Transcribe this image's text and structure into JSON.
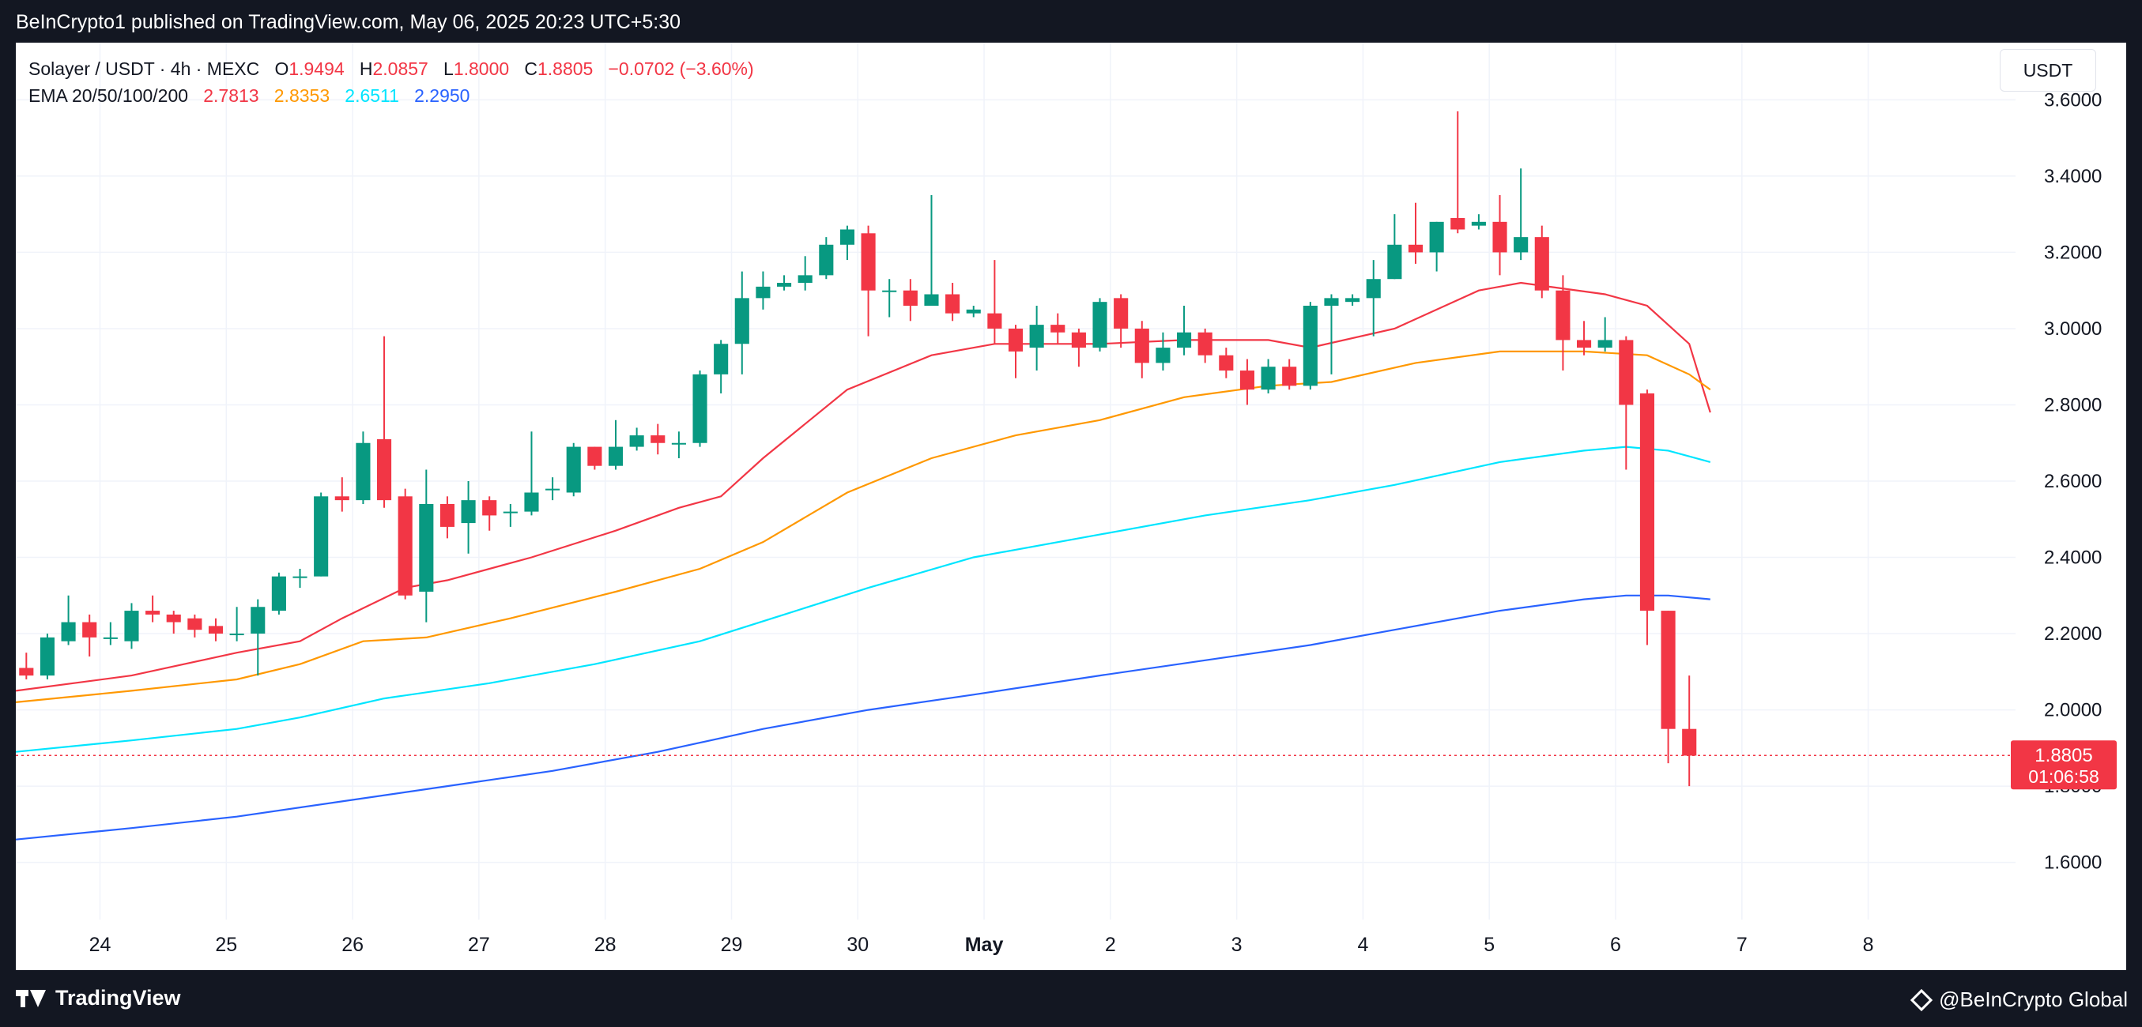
{
  "header": {
    "published_text": "BeInCrypto1 published on TradingView.com, May 06, 2025 20:23 UTC+5:30"
  },
  "footer": {
    "tv_logo_label": "TradingView",
    "brand_label": "@BeInCrypto Global"
  },
  "legend": {
    "symbol": "Solayer / USDT · 4h · MEXC",
    "o_label": "O",
    "o_value": "1.9494",
    "h_label": "H",
    "h_value": "2.0857",
    "l_label": "L",
    "l_value": "1.8000",
    "c_label": "C",
    "c_value": "1.8805",
    "change": "−0.0702 (−3.60%)",
    "ema_label": "EMA 20/50/100/200",
    "ema20": "2.7813",
    "ema50": "2.8353",
    "ema100": "2.6511",
    "ema200": "2.2950"
  },
  "currency_label": "USDT",
  "colors": {
    "up": "#089981",
    "down": "#f23645",
    "ema20": "#f23645",
    "ema50": "#ff9800",
    "ema100": "#00e5ff",
    "ema200": "#2962ff",
    "price_tag": "#f23645"
  },
  "chart_data": {
    "type": "candlestick",
    "title": "Solayer / USDT · 4h · MEXC",
    "ylim": [
      1.45,
      3.75
    ],
    "y_ticks": [
      "1.6000",
      "1.8000",
      "2.0000",
      "2.2000",
      "2.4000",
      "2.6000",
      "2.8000",
      "3.0000",
      "3.2000",
      "3.4000",
      "3.6000"
    ],
    "x_ticks": [
      {
        "label": "24",
        "t": 3.5
      },
      {
        "label": "25",
        "t": 9.5
      },
      {
        "label": "26",
        "t": 15.5
      },
      {
        "label": "27",
        "t": 21.5
      },
      {
        "label": "28",
        "t": 27.5
      },
      {
        "label": "29",
        "t": 33.5
      },
      {
        "label": "30",
        "t": 39.5
      },
      {
        "label": "May",
        "t": 45.5
      },
      {
        "label": "2",
        "t": 51.5
      },
      {
        "label": "3",
        "t": 57.5
      },
      {
        "label": "4",
        "t": 63.5
      },
      {
        "label": "5",
        "t": 69.5
      },
      {
        "label": "6",
        "t": 75.5
      },
      {
        "label": "7",
        "t": 81.5
      },
      {
        "label": "8",
        "t": 87.5
      }
    ],
    "t_range": [
      -0.5,
      94.5
    ],
    "last_price": {
      "value": 1.8805,
      "label": "1.8805",
      "countdown": "01:06:58"
    },
    "candles": [
      [
        2.11,
        2.09,
        2.15,
        2.08
      ],
      [
        2.09,
        2.19,
        2.2,
        2.08
      ],
      [
        2.18,
        2.23,
        2.3,
        2.17
      ],
      [
        2.23,
        2.19,
        2.25,
        2.14
      ],
      [
        2.19,
        2.19,
        2.23,
        2.17
      ],
      [
        2.18,
        2.26,
        2.28,
        2.16
      ],
      [
        2.26,
        2.25,
        2.3,
        2.23
      ],
      [
        2.25,
        2.23,
        2.26,
        2.2
      ],
      [
        2.24,
        2.21,
        2.25,
        2.19
      ],
      [
        2.22,
        2.2,
        2.24,
        2.18
      ],
      [
        2.2,
        2.2,
        2.27,
        2.18
      ],
      [
        2.2,
        2.27,
        2.29,
        2.09
      ],
      [
        2.26,
        2.35,
        2.36,
        2.25
      ],
      [
        2.35,
        2.35,
        2.37,
        2.32
      ],
      [
        2.35,
        2.56,
        2.57,
        2.35
      ],
      [
        2.56,
        2.55,
        2.61,
        2.52
      ],
      [
        2.55,
        2.7,
        2.73,
        2.54
      ],
      [
        2.71,
        2.55,
        2.98,
        2.53
      ],
      [
        2.56,
        2.3,
        2.58,
        2.29
      ],
      [
        2.31,
        2.54,
        2.63,
        2.23
      ],
      [
        2.54,
        2.48,
        2.56,
        2.45
      ],
      [
        2.49,
        2.55,
        2.6,
        2.41
      ],
      [
        2.55,
        2.51,
        2.56,
        2.47
      ],
      [
        2.52,
        2.52,
        2.54,
        2.48
      ],
      [
        2.52,
        2.57,
        2.73,
        2.51
      ],
      [
        2.58,
        2.58,
        2.61,
        2.55
      ],
      [
        2.57,
        2.69,
        2.7,
        2.56
      ],
      [
        2.69,
        2.64,
        2.69,
        2.63
      ],
      [
        2.64,
        2.69,
        2.76,
        2.63
      ],
      [
        2.69,
        2.72,
        2.74,
        2.68
      ],
      [
        2.72,
        2.7,
        2.75,
        2.67
      ],
      [
        2.7,
        2.7,
        2.73,
        2.66
      ],
      [
        2.7,
        2.88,
        2.89,
        2.69
      ],
      [
        2.88,
        2.96,
        2.97,
        2.83
      ],
      [
        2.96,
        3.08,
        3.15,
        2.88
      ],
      [
        3.08,
        3.11,
        3.15,
        3.05
      ],
      [
        3.11,
        3.12,
        3.14,
        3.1
      ],
      [
        3.12,
        3.14,
        3.19,
        3.1
      ],
      [
        3.14,
        3.22,
        3.24,
        3.13
      ],
      [
        3.22,
        3.26,
        3.27,
        3.18
      ],
      [
        3.25,
        3.1,
        3.27,
        2.98
      ],
      [
        3.1,
        3.1,
        3.13,
        3.03
      ],
      [
        3.1,
        3.06,
        3.13,
        3.02
      ],
      [
        3.06,
        3.09,
        3.35,
        3.06
      ],
      [
        3.09,
        3.04,
        3.12,
        3.02
      ],
      [
        3.04,
        3.05,
        3.06,
        3.03
      ],
      [
        3.04,
        3.0,
        3.18,
        2.96
      ],
      [
        3.0,
        2.94,
        3.01,
        2.87
      ],
      [
        2.95,
        3.01,
        3.06,
        2.89
      ],
      [
        3.01,
        2.99,
        3.04,
        2.96
      ],
      [
        2.99,
        2.95,
        3.0,
        2.9
      ],
      [
        2.95,
        3.07,
        3.08,
        2.94
      ],
      [
        3.08,
        3.0,
        3.09,
        2.95
      ],
      [
        3.0,
        2.91,
        3.02,
        2.87
      ],
      [
        2.91,
        2.95,
        2.99,
        2.89
      ],
      [
        2.95,
        2.99,
        3.06,
        2.93
      ],
      [
        2.99,
        2.93,
        3.0,
        2.91
      ],
      [
        2.93,
        2.89,
        2.95,
        2.87
      ],
      [
        2.89,
        2.84,
        2.92,
        2.8
      ],
      [
        2.84,
        2.9,
        2.92,
        2.83
      ],
      [
        2.9,
        2.85,
        2.92,
        2.84
      ],
      [
        2.85,
        3.06,
        3.07,
        2.84
      ],
      [
        3.06,
        3.08,
        3.09,
        2.88
      ],
      [
        3.07,
        3.08,
        3.09,
        3.06
      ],
      [
        3.08,
        3.13,
        3.18,
        2.98
      ],
      [
        3.13,
        3.22,
        3.3,
        3.13
      ],
      [
        3.22,
        3.2,
        3.33,
        3.17
      ],
      [
        3.2,
        3.28,
        3.28,
        3.15
      ],
      [
        3.29,
        3.26,
        3.57,
        3.25
      ],
      [
        3.27,
        3.28,
        3.3,
        3.26
      ],
      [
        3.28,
        3.2,
        3.35,
        3.14
      ],
      [
        3.2,
        3.24,
        3.42,
        3.18
      ],
      [
        3.24,
        3.1,
        3.27,
        3.08
      ],
      [
        3.1,
        2.97,
        3.14,
        2.89
      ],
      [
        2.97,
        2.95,
        3.02,
        2.93
      ],
      [
        2.95,
        2.97,
        3.03,
        2.94
      ],
      [
        2.97,
        2.8,
        2.98,
        2.63
      ],
      [
        2.83,
        2.26,
        2.84,
        2.17
      ],
      [
        2.26,
        1.95,
        2.26,
        1.86
      ],
      [
        1.95,
        1.88,
        2.09,
        1.8
      ]
    ],
    "series": [
      {
        "name": "EMA 20",
        "color": "#f23645",
        "points": [
          [
            -0.5,
            2.05
          ],
          [
            5,
            2.09
          ],
          [
            10,
            2.15
          ],
          [
            13,
            2.18
          ],
          [
            15,
            2.24
          ],
          [
            18,
            2.32
          ],
          [
            20,
            2.34
          ],
          [
            24,
            2.4
          ],
          [
            28,
            2.47
          ],
          [
            31,
            2.53
          ],
          [
            33,
            2.56
          ],
          [
            35,
            2.66
          ],
          [
            39,
            2.84
          ],
          [
            43,
            2.93
          ],
          [
            46,
            2.96
          ],
          [
            51,
            2.96
          ],
          [
            55,
            2.97
          ],
          [
            59,
            2.97
          ],
          [
            61,
            2.95
          ],
          [
            65,
            3.0
          ],
          [
            69,
            3.1
          ],
          [
            71,
            3.12
          ],
          [
            75,
            3.09
          ],
          [
            77,
            3.06
          ],
          [
            79,
            2.96
          ],
          [
            80,
            2.78
          ]
        ]
      },
      {
        "name": "EMA 50",
        "color": "#ff9800",
        "points": [
          [
            -0.5,
            2.02
          ],
          [
            5,
            2.05
          ],
          [
            10,
            2.08
          ],
          [
            13,
            2.12
          ],
          [
            16,
            2.18
          ],
          [
            19,
            2.19
          ],
          [
            23,
            2.24
          ],
          [
            28,
            2.31
          ],
          [
            32,
            2.37
          ],
          [
            35,
            2.44
          ],
          [
            39,
            2.57
          ],
          [
            43,
            2.66
          ],
          [
            47,
            2.72
          ],
          [
            51,
            2.76
          ],
          [
            55,
            2.82
          ],
          [
            59,
            2.85
          ],
          [
            62,
            2.86
          ],
          [
            66,
            2.91
          ],
          [
            70,
            2.94
          ],
          [
            74,
            2.94
          ],
          [
            77,
            2.93
          ],
          [
            79,
            2.88
          ],
          [
            80,
            2.84
          ]
        ]
      },
      {
        "name": "EMA 100",
        "color": "#00e5ff",
        "points": [
          [
            -0.5,
            1.89
          ],
          [
            5,
            1.92
          ],
          [
            10,
            1.95
          ],
          [
            13,
            1.98
          ],
          [
            17,
            2.03
          ],
          [
            22,
            2.07
          ],
          [
            27,
            2.12
          ],
          [
            32,
            2.18
          ],
          [
            36,
            2.25
          ],
          [
            40,
            2.32
          ],
          [
            45,
            2.4
          ],
          [
            51,
            2.46
          ],
          [
            56,
            2.51
          ],
          [
            61,
            2.55
          ],
          [
            65,
            2.59
          ],
          [
            70,
            2.65
          ],
          [
            74,
            2.68
          ],
          [
            76,
            2.69
          ],
          [
            78,
            2.68
          ],
          [
            80,
            2.65
          ]
        ]
      },
      {
        "name": "EMA 200",
        "color": "#2962ff",
        "points": [
          [
            -0.5,
            1.66
          ],
          [
            5,
            1.69
          ],
          [
            10,
            1.72
          ],
          [
            15,
            1.76
          ],
          [
            20,
            1.8
          ],
          [
            25,
            1.84
          ],
          [
            30,
            1.89
          ],
          [
            35,
            1.95
          ],
          [
            40,
            2.0
          ],
          [
            45,
            2.04
          ],
          [
            51,
            2.09
          ],
          [
            56,
            2.13
          ],
          [
            61,
            2.17
          ],
          [
            65,
            2.21
          ],
          [
            70,
            2.26
          ],
          [
            74,
            2.29
          ],
          [
            76,
            2.3
          ],
          [
            78,
            2.3
          ],
          [
            80,
            2.29
          ]
        ]
      }
    ]
  }
}
